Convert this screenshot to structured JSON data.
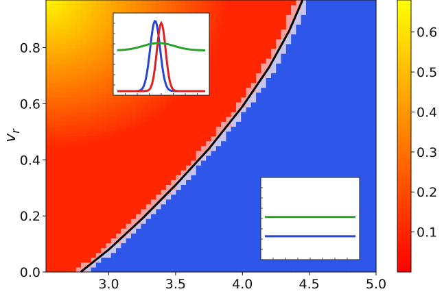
{
  "chart_data": {
    "type": "heatmap",
    "title": "",
    "xlabel": "",
    "ylabel": "v_r",
    "ylabel_main": "v",
    "ylabel_sub": "r",
    "xlim": [
      2.53,
      5.0
    ],
    "ylim": [
      0.0,
      0.97
    ],
    "x_ticks": [
      3.0,
      3.5,
      4.0,
      4.5,
      5.0
    ],
    "x_tick_labels": [
      "3.0",
      "3.5",
      "4.0",
      "4.5",
      "5.0"
    ],
    "y_ticks": [
      0.0,
      0.2,
      0.4,
      0.6,
      0.8
    ],
    "y_tick_labels": [
      "0.0",
      "0.2",
      "0.4",
      "0.6",
      "0.8"
    ],
    "grid": false,
    "grid_resolution": [
      66,
      56
    ],
    "boundary_curve": {
      "color": "#000000",
      "x": [
        2.79,
        3.0,
        3.25,
        3.5,
        3.75,
        4.0,
        4.2,
        4.35,
        4.45
      ],
      "y": [
        0.0,
        0.08,
        0.19,
        0.31,
        0.44,
        0.59,
        0.73,
        0.86,
        0.97
      ]
    },
    "region_left_value_range": [
      0.1,
      0.65
    ],
    "region_right_color": "#2e56e8",
    "colorbar": {
      "colormap": "autumn",
      "range": [
        0.0,
        0.68
      ],
      "ticks": [
        0.1,
        0.2,
        0.3,
        0.4,
        0.5,
        0.6
      ],
      "tick_labels": [
        "0.1",
        "0.2",
        "0.3",
        "0.4",
        "0.5",
        "0.6"
      ],
      "low_color": "#ff0000",
      "high_color": "#ffff00"
    },
    "insets": [
      {
        "position": "top-left",
        "series": [
          {
            "color": "#2545d6",
            "shape": "peak",
            "center": 0.43,
            "height": 0.95,
            "width": 0.08
          },
          {
            "color": "#e02020",
            "shape": "peak",
            "center": 0.5,
            "height": 0.92,
            "width": 0.07
          },
          {
            "color": "#2aa22a",
            "shape": "peak",
            "center": 0.47,
            "height": 0.1,
            "width": 0.25,
            "baseline": 0.55
          }
        ]
      },
      {
        "position": "bottom-right",
        "series": [
          {
            "color": "#2aa22a",
            "shape": "flat",
            "level": 0.52
          },
          {
            "color": "#2545d6",
            "shape": "flat",
            "level": 0.26
          }
        ]
      }
    ]
  }
}
